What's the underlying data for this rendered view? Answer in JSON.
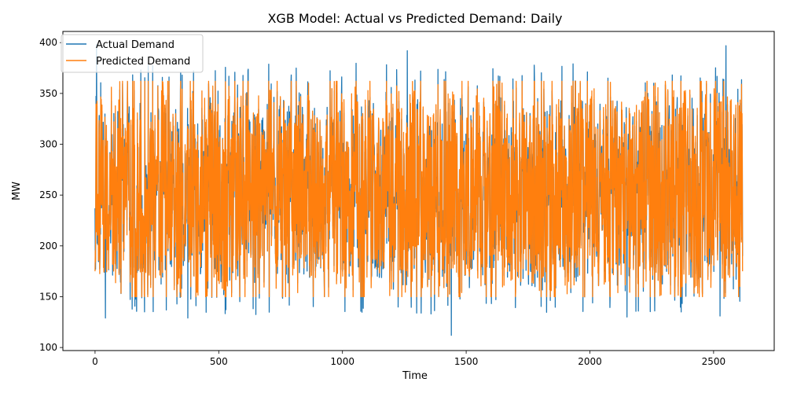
{
  "chart_data": {
    "type": "line",
    "title": "XGB Model: Actual vs Predicted Demand: Daily",
    "xlabel": "Time",
    "ylabel": "MW",
    "xlim": [
      -130,
      2745
    ],
    "ylim": [
      97,
      411
    ],
    "xticks": [
      0,
      500,
      1000,
      1500,
      2000,
      2500
    ],
    "xtick_labels": [
      "0",
      "500",
      "1000",
      "1500",
      "2000",
      "2500"
    ],
    "yticks": [
      100,
      150,
      200,
      250,
      300,
      350,
      400
    ],
    "ytick_labels": [
      "100",
      "150",
      "200",
      "250",
      "300",
      "350",
      "400"
    ],
    "grid": false,
    "legend_position": "top-left",
    "n_points": 2618,
    "x_range": [
      0,
      2617
    ],
    "series": [
      {
        "name": "Actual Demand",
        "color": "#1f77b4",
        "min": 112,
        "max": 397,
        "notable_points": [
          {
            "x": 0,
            "y": 237
          },
          {
            "x": 6,
            "y": 398
          },
          {
            "x": 42,
            "y": 129
          },
          {
            "x": 375,
            "y": 129
          },
          {
            "x": 1262,
            "y": 392
          },
          {
            "x": 1440,
            "y": 112
          },
          {
            "x": 2150,
            "y": 130
          },
          {
            "x": 2526,
            "y": 131
          },
          {
            "x": 2550,
            "y": 397
          },
          {
            "x": 2617,
            "y": 190
          }
        ]
      },
      {
        "name": "Predicted Demand",
        "color": "#ff7f0e",
        "min": 150,
        "max": 362,
        "notable_points": [
          {
            "x": 0,
            "y": 175
          },
          {
            "x": 2617,
            "y": 175
          }
        ]
      }
    ]
  }
}
